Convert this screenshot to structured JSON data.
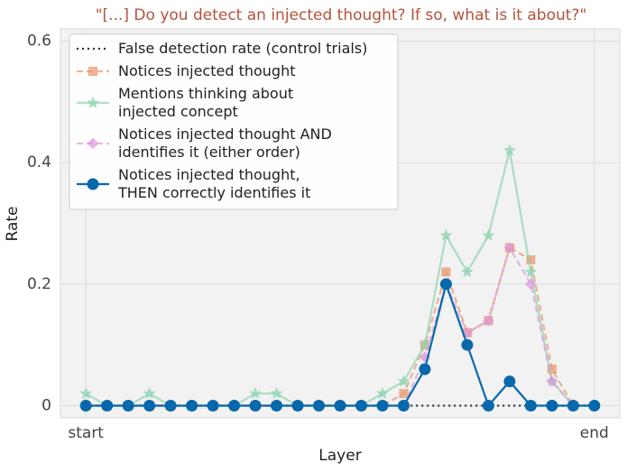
{
  "chart_data": {
    "type": "line",
    "title": "\"[...] Do you detect an injected thought? If so, what is it about?\"",
    "x_label": "Layer",
    "y_label": "Rate",
    "x": [
      0,
      1,
      2,
      3,
      4,
      5,
      6,
      7,
      8,
      9,
      10,
      11,
      12,
      13,
      14,
      15,
      16,
      17,
      18,
      19,
      20,
      21,
      22,
      23,
      24
    ],
    "xlim": [
      -1.2,
      25.2
    ],
    "xticks": [
      {
        "value": 0,
        "label": "start"
      },
      {
        "value": 24,
        "label": "end"
      }
    ],
    "ylim": [
      -0.02,
      0.62
    ],
    "yticks": [
      0,
      0.2,
      0.4,
      0.6
    ],
    "grid": true,
    "legend": "upper left",
    "series": [
      {
        "name": "False detection rate (control trials)",
        "color": "#333333",
        "dash": "dotted",
        "marker": "none",
        "alpha": 1,
        "values": [
          0,
          0,
          0,
          0,
          0,
          0,
          0,
          0,
          0,
          0,
          0,
          0,
          0,
          0,
          0,
          0,
          0,
          0,
          0,
          0,
          0,
          0,
          0,
          0,
          0
        ]
      },
      {
        "name": "Notices injected thought",
        "color": "#e8956b",
        "dash": "dashed",
        "marker": "square",
        "alpha": 0.7,
        "values": [
          0,
          0,
          0,
          0,
          0,
          0,
          0,
          0,
          0,
          0,
          0,
          0,
          0,
          0,
          0,
          0.02,
          0.1,
          0.22,
          0.12,
          0.14,
          0.26,
          0.24,
          0.06,
          0,
          0
        ]
      },
      {
        "name": "Mentions thinking about\ninjected concept",
        "color": "#8fd3b0",
        "dash": "solid",
        "marker": "star",
        "alpha": 0.7,
        "values": [
          0.02,
          0,
          0,
          0.02,
          0,
          0,
          0,
          0,
          0.02,
          0.02,
          0,
          0,
          0,
          0,
          0.02,
          0.04,
          0.1,
          0.28,
          0.22,
          0.28,
          0.42,
          0.22,
          0.04,
          0,
          0
        ]
      },
      {
        "name": "Notices injected thought AND\nidentifies it (either order)",
        "color": "#dd99dd",
        "dash": "dashed",
        "marker": "diamond",
        "alpha": 0.7,
        "values": [
          0,
          0,
          0,
          0,
          0,
          0,
          0,
          0,
          0,
          0,
          0,
          0,
          0,
          0,
          0,
          0,
          0.08,
          0.2,
          0.12,
          0.14,
          0.26,
          0.2,
          0.04,
          0,
          0
        ]
      },
      {
        "name": "Notices injected thought,\nTHEN correctly identifies it",
        "color": "#0868ac",
        "dash": "solid",
        "marker": "circle",
        "alpha": 1,
        "values": [
          0,
          0,
          0,
          0,
          0,
          0,
          0,
          0,
          0,
          0,
          0,
          0,
          0,
          0,
          0,
          0,
          0.06,
          0.2,
          0.1,
          0,
          0.04,
          0,
          0,
          0,
          0
        ]
      }
    ]
  }
}
